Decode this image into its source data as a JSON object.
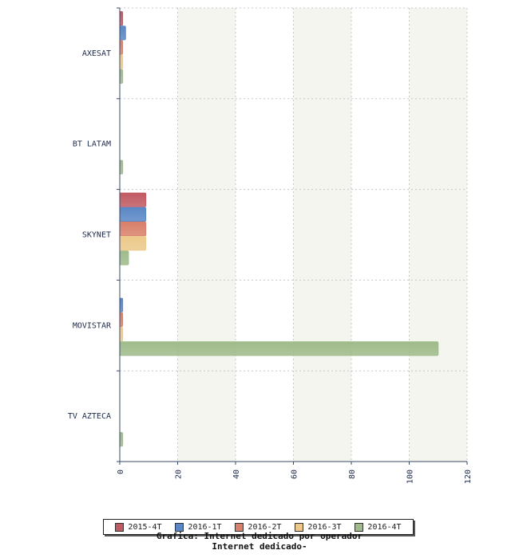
{
  "chart_data": {
    "type": "bar",
    "orientation": "horizontal",
    "categories": [
      "AXESAT",
      "BT LATAM",
      "SKYNET",
      "MOVISTAR",
      "TV AZTECA"
    ],
    "series": [
      {
        "name": "2015-4T",
        "color": "#c15a63",
        "values": [
          1,
          0,
          9,
          0,
          0
        ]
      },
      {
        "name": "2016-1T",
        "color": "#5a87c5",
        "values": [
          2,
          0,
          9,
          1,
          0
        ]
      },
      {
        "name": "2016-2T",
        "color": "#d8806a",
        "values": [
          1,
          0,
          9,
          1,
          0
        ]
      },
      {
        "name": "2016-3T",
        "color": "#ecc98a",
        "values": [
          1,
          0,
          9,
          1,
          0
        ]
      },
      {
        "name": "2016-4T",
        "color": "#9fbb8a",
        "values": [
          1,
          1,
          3,
          110,
          1
        ]
      }
    ],
    "xlim": [
      0,
      120
    ],
    "xticks": [
      "0",
      "20",
      "40",
      "60",
      "80",
      "100",
      "120"
    ],
    "grid": true,
    "legend_position": "bottom"
  },
  "caption": {
    "line1": "Grafica: Internet dedicado por operador",
    "line2": "Internet dedicado-"
  }
}
